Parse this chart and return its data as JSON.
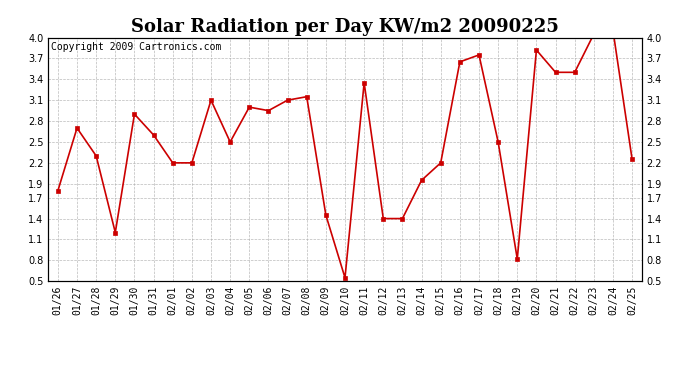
{
  "title": "Solar Radiation per Day KW/m2 20090225",
  "copyright_text": "Copyright 2009 Cartronics.com",
  "dates": [
    "01/26",
    "01/27",
    "01/28",
    "01/29",
    "01/30",
    "01/31",
    "02/01",
    "02/02",
    "02/03",
    "02/04",
    "02/05",
    "02/06",
    "02/07",
    "02/08",
    "02/09",
    "02/10",
    "02/11",
    "02/12",
    "02/13",
    "02/14",
    "02/15",
    "02/16",
    "02/17",
    "02/18",
    "02/19",
    "02/20",
    "02/21",
    "02/22",
    "02/23",
    "02/24",
    "02/25"
  ],
  "values": [
    1.8,
    2.7,
    2.3,
    1.2,
    2.9,
    2.6,
    2.2,
    2.2,
    3.1,
    2.5,
    3.0,
    2.95,
    3.1,
    3.15,
    1.45,
    0.55,
    3.35,
    1.4,
    1.4,
    1.95,
    2.2,
    3.65,
    3.75,
    2.5,
    0.82,
    3.82,
    3.5,
    3.5,
    4.05,
    4.1,
    2.25
  ],
  "line_color": "#cc0000",
  "marker": "s",
  "marker_size": 3,
  "bg_color": "#ffffff",
  "grid_color": "#aaaaaa",
  "ylim": [
    0.5,
    4.0
  ],
  "yticks": [
    0.5,
    0.8,
    1.1,
    1.4,
    1.7,
    1.9,
    2.2,
    2.5,
    2.8,
    3.1,
    3.4,
    3.7,
    4.0
  ],
  "title_fontsize": 13,
  "tick_fontsize": 7,
  "copyright_fontsize": 7
}
